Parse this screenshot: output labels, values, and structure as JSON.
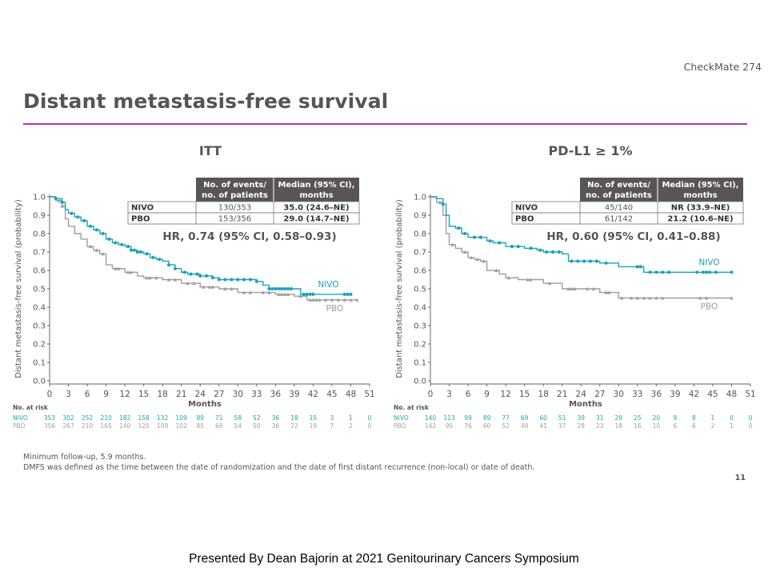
{
  "header": {
    "trial_name": "CheckMate 274",
    "title": "Distant metastasis-free survival"
  },
  "footer": {
    "notes": [
      "Minimum follow-up, 5.9 months.",
      "DMFS was defined as the time between the date of randomization and the date of first distant recurrence (non-local) or date of death."
    ],
    "page_number": "11",
    "presenter": "Presented By Dean Bajorin at 2021 Genitourinary  Cancers Symposium"
  },
  "colors": {
    "nivo": "#1aa3b8",
    "pbo": "#9e9e9e",
    "table_header": "#5a5555"
  },
  "chart_data": [
    {
      "type": "line",
      "panel_title": "ITT",
      "xlabel": "Months",
      "ylabel": "Distant metastasis-free survival (probability)",
      "xlim": [
        0,
        51
      ],
      "ylim": [
        0,
        1
      ],
      "xticks": [
        0,
        3,
        6,
        9,
        12,
        15,
        18,
        21,
        24,
        27,
        30,
        33,
        36,
        39,
        42,
        45,
        48,
        51
      ],
      "yticks": [
        "0.0",
        "0.1",
        "0.2",
        "0.3",
        "0.4",
        "0.5",
        "0.6",
        "0.7",
        "0.8",
        "0.9",
        "1.0"
      ],
      "hr_text": "HR, 0.74 (95% CI, 0.58–0.93)",
      "table": {
        "headers": [
          "No. of events/\nno. of patients",
          "Median (95% CI),\nmonths"
        ],
        "rows": [
          {
            "arm": "NIVO",
            "events": "130/353",
            "median": "35.0 (24.6–NE)"
          },
          {
            "arm": "PBO",
            "events": "153/356",
            "median": "29.0 (14.7–NE)"
          }
        ]
      },
      "at_risk": {
        "label": "No. at risk",
        "rows": [
          {
            "arm": "NIVO",
            "values": [
              "353",
              "302",
              "252",
              "210",
              "182",
              "158",
              "132",
              "109",
              "89",
              "71",
              "58",
              "52",
              "36",
              "18",
              "15",
              "3",
              "1",
              "0"
            ]
          },
          {
            "arm": "PBO",
            "values": [
              "356",
              "267",
              "210",
              "165",
              "140",
              "125",
              "109",
              "102",
              "85",
              "69",
              "54",
              "50",
              "36",
              "22",
              "19",
              "7",
              "2",
              "0"
            ]
          }
        ]
      },
      "series": [
        {
          "name": "NIVO",
          "points": [
            [
              0,
              1.0
            ],
            [
              1,
              0.99
            ],
            [
              2,
              0.97
            ],
            [
              2.5,
              0.93
            ],
            [
              3,
              0.91
            ],
            [
              4,
              0.89
            ],
            [
              5,
              0.87
            ],
            [
              6,
              0.84
            ],
            [
              7,
              0.82
            ],
            [
              8,
              0.8
            ],
            [
              9,
              0.77
            ],
            [
              10,
              0.75
            ],
            [
              11,
              0.74
            ],
            [
              12,
              0.73
            ],
            [
              13,
              0.71
            ],
            [
              14,
              0.7
            ],
            [
              15,
              0.69
            ],
            [
              16,
              0.67
            ],
            [
              17,
              0.66
            ],
            [
              18,
              0.65
            ],
            [
              19,
              0.63
            ],
            [
              20,
              0.61
            ],
            [
              21,
              0.59
            ],
            [
              22,
              0.58
            ],
            [
              24,
              0.57
            ],
            [
              26,
              0.56
            ],
            [
              27,
              0.55
            ],
            [
              30,
              0.55
            ],
            [
              33,
              0.54
            ],
            [
              34,
              0.52
            ],
            [
              35,
              0.5
            ],
            [
              38,
              0.5
            ],
            [
              39,
              0.5
            ],
            [
              40,
              0.47
            ],
            [
              48,
              0.47
            ]
          ],
          "censor": [
            1,
            2,
            3.5,
            4.5,
            5.5,
            6.5,
            7.5,
            8.5,
            9.5,
            10.5,
            11.5,
            12.5,
            13,
            13.5,
            14,
            14.5,
            15.5,
            16.5,
            17.5,
            19,
            20,
            21.5,
            22.5,
            23.5,
            24,
            25,
            26,
            27,
            28,
            29,
            30,
            31,
            32,
            33,
            35,
            35.5,
            36,
            36.5,
            37,
            37.5,
            38,
            38.5,
            40.5,
            41,
            41.5,
            42,
            47,
            47.5,
            48
          ]
        },
        {
          "name": "PBO",
          "points": [
            [
              0,
              1.0
            ],
            [
              1,
              0.98
            ],
            [
              2,
              0.95
            ],
            [
              2.5,
              0.88
            ],
            [
              3,
              0.84
            ],
            [
              4,
              0.8
            ],
            [
              5,
              0.77
            ],
            [
              6,
              0.73
            ],
            [
              7,
              0.71
            ],
            [
              8,
              0.69
            ],
            [
              9,
              0.63
            ],
            [
              10,
              0.61
            ],
            [
              12,
              0.59
            ],
            [
              14,
              0.57
            ],
            [
              15,
              0.56
            ],
            [
              18,
              0.55
            ],
            [
              21,
              0.53
            ],
            [
              24,
              0.51
            ],
            [
              27,
              0.5
            ],
            [
              30,
              0.48
            ],
            [
              33,
              0.48
            ],
            [
              36,
              0.47
            ],
            [
              39,
              0.46
            ],
            [
              41,
              0.44
            ],
            [
              49,
              0.44
            ]
          ],
          "censor": [
            1.5,
            2,
            6.5,
            7.5,
            8.5,
            10.5,
            11,
            12.5,
            13,
            15.5,
            16,
            17,
            19,
            20,
            22,
            23,
            24.5,
            25.5,
            26,
            28,
            29,
            31,
            32,
            34,
            35,
            36.5,
            37,
            37.5,
            38,
            40,
            41.5,
            42,
            42.5,
            43,
            44,
            45,
            46,
            47,
            48,
            49
          ]
        }
      ]
    },
    {
      "type": "line",
      "panel_title": "PD-L1 ≥ 1%",
      "xlabel": "Months",
      "ylabel": "Distant metastasis-free survival (probability)",
      "xlim": [
        0,
        51
      ],
      "ylim": [
        0,
        1
      ],
      "xticks": [
        0,
        3,
        6,
        9,
        12,
        15,
        18,
        21,
        24,
        27,
        30,
        33,
        36,
        39,
        42,
        45,
        48,
        51
      ],
      "yticks": [
        "0.0",
        "0.1",
        "0.2",
        "0.3",
        "0.4",
        "0.5",
        "0.6",
        "0.7",
        "0.8",
        "0.9",
        "1.0"
      ],
      "hr_text": "HR, 0.60 (95% CI, 0.41–0.88)",
      "table": {
        "headers": [
          "No. of events/\nno. of patients",
          "Median (95% CI),\nmonths"
        ],
        "rows": [
          {
            "arm": "NIVO",
            "events": "45/140",
            "median": "NR (33.9–NE)"
          },
          {
            "arm": "PBO",
            "events": "61/142",
            "median": "21.2 (10.6–NE)"
          }
        ]
      },
      "at_risk": {
        "label": "No. at risk",
        "rows": [
          {
            "arm": "NIVO",
            "values": [
              "140",
              "113",
              "99",
              "89",
              "77",
              "69",
              "60",
              "51",
              "39",
              "31",
              "29",
              "25",
              "20",
              "9",
              "8",
              "1",
              "0",
              "0"
            ]
          },
          {
            "arm": "PBO",
            "values": [
              "142",
              "95",
              "76",
              "60",
              "52",
              "48",
              "41",
              "37",
              "28",
              "23",
              "18",
              "16",
              "10",
              "6",
              "6",
              "2",
              "1",
              "0"
            ]
          }
        ]
      },
      "series": [
        {
          "name": "NIVO",
          "points": [
            [
              0,
              1.0
            ],
            [
              1,
              0.99
            ],
            [
              2,
              0.96
            ],
            [
              2.5,
              0.9
            ],
            [
              3,
              0.84
            ],
            [
              4,
              0.83
            ],
            [
              5,
              0.8
            ],
            [
              6,
              0.78
            ],
            [
              9,
              0.76
            ],
            [
              10,
              0.75
            ],
            [
              12,
              0.73
            ],
            [
              15,
              0.72
            ],
            [
              17,
              0.71
            ],
            [
              18,
              0.7
            ],
            [
              21,
              0.69
            ],
            [
              22,
              0.65
            ],
            [
              27,
              0.64
            ],
            [
              30,
              0.62
            ],
            [
              33,
              0.62
            ],
            [
              34,
              0.59
            ],
            [
              42,
              0.59
            ],
            [
              48,
              0.59
            ]
          ],
          "censor": [
            2,
            4.5,
            5.5,
            7,
            8,
            9.5,
            11,
            13,
            14,
            16,
            17.5,
            18.5,
            19.5,
            20.5,
            22.5,
            23.5,
            24.5,
            25.5,
            26.5,
            28,
            33,
            33.5,
            35,
            36,
            37,
            38,
            42.5,
            43.5,
            44,
            44.5,
            45.5,
            48
          ]
        },
        {
          "name": "PBO",
          "points": [
            [
              0,
              1.0
            ],
            [
              1,
              0.97
            ],
            [
              2,
              0.9
            ],
            [
              2.5,
              0.8
            ],
            [
              3,
              0.74
            ],
            [
              4,
              0.72
            ],
            [
              5,
              0.7
            ],
            [
              6,
              0.67
            ],
            [
              7,
              0.66
            ],
            [
              8,
              0.65
            ],
            [
              9,
              0.6
            ],
            [
              11,
              0.58
            ],
            [
              12,
              0.56
            ],
            [
              14,
              0.55
            ],
            [
              15,
              0.55
            ],
            [
              18,
              0.53
            ],
            [
              21,
              0.5
            ],
            [
              24,
              0.5
            ],
            [
              27,
              0.48
            ],
            [
              30,
              0.45
            ],
            [
              42,
              0.45
            ],
            [
              48,
              0.45
            ]
          ],
          "censor": [
            1.5,
            3.5,
            5.5,
            6.5,
            7.5,
            8.5,
            10.5,
            12.5,
            15.5,
            16,
            19,
            22,
            22.5,
            23,
            25,
            26,
            28,
            28.5,
            30.5,
            32,
            33,
            34,
            35,
            36,
            37,
            43,
            44,
            48
          ]
        }
      ]
    }
  ]
}
